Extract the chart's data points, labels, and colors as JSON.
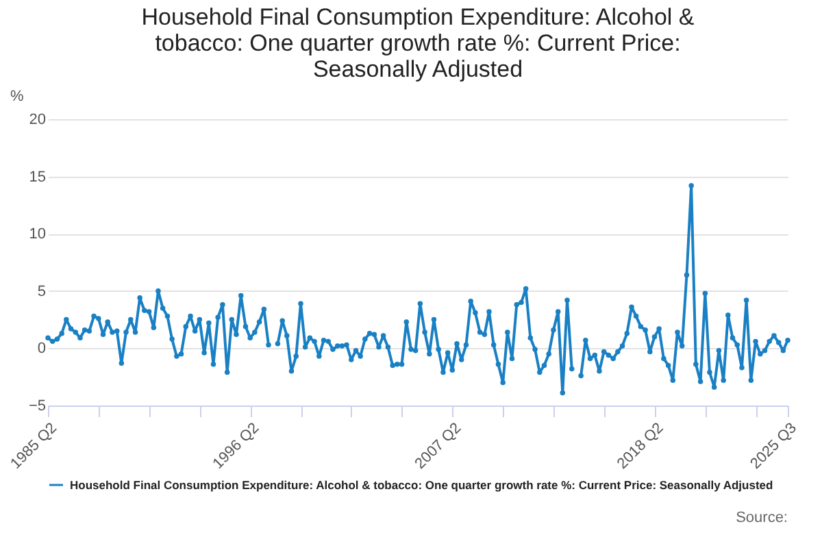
{
  "chart_data": {
    "type": "line",
    "title": "Household Final Consumption Expenditure: Alcohol & tobacco: One quarter growth rate %: Current Price: Seasonally Adjusted",
    "ylabel": "%",
    "x": [
      "1985-04",
      "1985-07",
      "1985-10",
      "1986-01",
      "1986-04",
      "1986-07",
      "1986-10",
      "1987-01",
      "1987-04",
      "1987-07",
      "1987-10",
      "1988-01",
      "1988-04",
      "1988-07",
      "1988-10",
      "1989-01",
      "1989-04",
      "1989-07",
      "1989-10",
      "1990-01",
      "1990-04",
      "1990-07",
      "1990-10",
      "1991-01",
      "1991-04",
      "1991-07",
      "1991-10",
      "1992-01",
      "1992-04",
      "1992-07",
      "1992-10",
      "1993-01",
      "1993-04",
      "1993-07",
      "1993-10",
      "1994-01",
      "1994-04",
      "1994-07",
      "1994-10",
      "1995-01",
      "1995-04",
      "1995-07",
      "1995-10",
      "1996-01",
      "1996-04",
      "1996-07",
      "1996-10",
      "1997-01",
      "1997-04",
      "1997-07",
      "1997-10",
      "1998-01",
      "1998-04",
      "1998-07",
      "1998-10",
      "1999-01",
      "1999-04",
      "1999-07",
      "1999-10",
      "2000-01",
      "2000-04",
      "2000-07",
      "2000-10",
      "2001-01",
      "2001-04",
      "2001-07",
      "2001-10",
      "2002-01",
      "2002-04",
      "2002-07",
      "2002-10",
      "2003-01",
      "2003-04",
      "2003-07",
      "2003-10",
      "2004-01",
      "2004-04",
      "2004-07",
      "2004-10",
      "2005-01",
      "2005-04",
      "2005-07",
      "2005-10",
      "2006-01",
      "2006-04",
      "2006-07",
      "2006-10",
      "2007-01",
      "2007-04",
      "2007-07",
      "2007-10",
      "2008-01",
      "2008-04",
      "2008-07",
      "2008-10",
      "2009-01",
      "2009-04",
      "2009-07",
      "2009-10",
      "2010-01",
      "2010-04",
      "2010-07",
      "2010-10",
      "2011-01",
      "2011-04",
      "2011-07",
      "2011-10",
      "2012-01",
      "2012-04",
      "2012-07",
      "2012-10",
      "2013-01",
      "2013-04",
      "2013-07",
      "2013-10",
      "2014-01",
      "2014-04",
      "2014-07",
      "2014-10",
      "2015-01",
      "2015-04",
      "2015-07",
      "2015-10",
      "2016-01",
      "2016-04",
      "2016-07",
      "2016-10",
      "2017-01",
      "2017-04",
      "2017-07",
      "2017-10",
      "2018-01",
      "2018-04",
      "2018-07",
      "2018-10",
      "2019-01",
      "2019-04",
      "2019-07",
      "2019-10",
      "2020-01",
      "2020-04",
      "2020-07",
      "2020-10",
      "2021-01",
      "2021-04",
      "2021-07",
      "2021-10",
      "2022-01",
      "2022-04",
      "2022-07",
      "2022-10",
      "2023-01",
      "2023-04",
      "2023-07",
      "2023-10",
      "2024-01",
      "2024-04",
      "2024-07",
      "2024-10",
      "2025-01",
      "2025-04",
      "2025-07"
    ],
    "series": [
      {
        "name": "Household Final Consumption Expenditure: Alcohol & tobacco: One quarter growth rate %: Current Price: Seasonally Adjusted",
        "color": "#1a80c4",
        "values": [
          0.9,
          0.6,
          0.8,
          1.3,
          2.5,
          1.7,
          1.4,
          0.9,
          1.6,
          1.5,
          2.8,
          2.6,
          1.2,
          2.3,
          1.4,
          1.5,
          -1.3,
          1.4,
          2.5,
          1.4,
          4.4,
          3.3,
          3.2,
          1.8,
          5.0,
          3.5,
          2.8,
          0.8,
          -0.7,
          -0.5,
          1.9,
          2.8,
          1.5,
          2.5,
          -0.4,
          2.2,
          -1.4,
          2.7,
          3.8,
          -2.1,
          2.5,
          1.2,
          4.6,
          1.9,
          0.9,
          1.4,
          2.3,
          3.4,
          0.3,
          null,
          0.4,
          2.4,
          1.1,
          -2.0,
          -0.7,
          3.9,
          0.1,
          0.9,
          0.6,
          -0.7,
          0.7,
          0.6,
          -0.1,
          0.2,
          0.2,
          0.3,
          -1.0,
          -0.2,
          -0.7,
          0.8,
          1.3,
          1.2,
          0.1,
          1.1,
          0.1,
          -1.5,
          -1.4,
          -1.4,
          2.3,
          -0.1,
          -0.2,
          3.9,
          1.4,
          -0.5,
          2.5,
          -0.1,
          -2.1,
          -0.4,
          -1.9,
          0.4,
          -1.0,
          0.3,
          4.1,
          3.1,
          1.4,
          1.2,
          3.2,
          0.3,
          -1.4,
          -3.0,
          1.4,
          -0.9,
          3.8,
          4.0,
          5.2,
          0.9,
          -0.1,
          -2.1,
          -1.5,
          -0.5,
          1.6,
          3.2,
          -3.9,
          4.2,
          -1.8,
          null,
          -2.4,
          0.7,
          -0.9,
          -0.6,
          -2.0,
          -0.3,
          -0.6,
          -0.9,
          -0.3,
          0.2,
          1.3,
          3.6,
          2.8,
          1.9,
          1.6,
          -0.3,
          1.0,
          1.7,
          -0.9,
          -1.5,
          -2.8,
          1.4,
          0.2,
          6.4,
          14.2,
          -1.4,
          -2.9,
          4.8,
          -2.1,
          -3.4,
          -0.2,
          -2.8,
          2.9,
          0.9,
          0.3,
          -1.7,
          4.2,
          -2.8,
          0.6,
          -0.5,
          -0.2,
          0.6,
          1.1,
          0.5,
          -0.2,
          0.7
        ]
      }
    ],
    "xlim": [
      "1985-04",
      "2025-07"
    ],
    "xticks": [
      {
        "value": "1985-04",
        "label": "1985 Q2"
      },
      {
        "value": "1988-01",
        "label": null
      },
      {
        "value": "1990-10",
        "label": null
      },
      {
        "value": "1993-07",
        "label": null
      },
      {
        "value": "1996-04",
        "label": "1996 Q2"
      },
      {
        "value": "1999-01",
        "label": null
      },
      {
        "value": "2001-10",
        "label": null
      },
      {
        "value": "2004-07",
        "label": null
      },
      {
        "value": "2007-04",
        "label": "2007 Q2"
      },
      {
        "value": "2010-01",
        "label": null
      },
      {
        "value": "2012-10",
        "label": null
      },
      {
        "value": "2015-07",
        "label": null
      },
      {
        "value": "2018-04",
        "label": "2018 Q2"
      },
      {
        "value": "2021-01",
        "label": null
      },
      {
        "value": "2023-10",
        "label": null
      },
      {
        "value": "2025-07",
        "label": "2025 Q3"
      }
    ],
    "ylim": [
      -5,
      20
    ],
    "yticks": [
      -5,
      0,
      5,
      10,
      15,
      20
    ],
    "grid": "y",
    "legend": "bottom",
    "marker": "circle",
    "line_style": "solid",
    "annotations": [
      "Source:"
    ]
  }
}
